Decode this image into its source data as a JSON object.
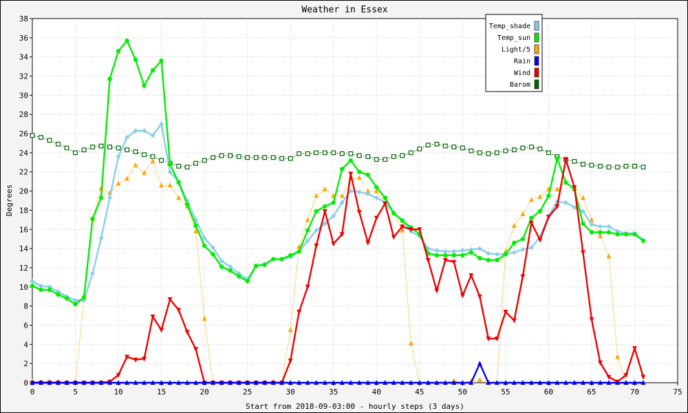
{
  "chart_data": {
    "type": "line",
    "title": "Weather in Essex",
    "xlabel": "Start from 2018-09-03:00 - hourly steps (3 days)",
    "ylabel": "Degrees",
    "xlim": [
      0,
      75
    ],
    "ylim": [
      0,
      38
    ],
    "x_ticks": [
      0,
      5,
      10,
      15,
      20,
      25,
      30,
      35,
      40,
      45,
      50,
      55,
      60,
      65,
      70,
      75
    ],
    "y_ticks": [
      0,
      2,
      4,
      6,
      8,
      10,
      12,
      14,
      16,
      18,
      20,
      22,
      24,
      26,
      28,
      30,
      32,
      34,
      36,
      38
    ],
    "grid": true,
    "legend_position": "top-right",
    "series": [
      {
        "name": "Temp_shade",
        "color": "#87ceeb",
        "marker": "diamond",
        "style": "solid",
        "values": [
          10.6,
          10.1,
          10.0,
          9.5,
          9.0,
          8.6,
          8.6,
          11.4,
          15.1,
          19.3,
          23.6,
          25.6,
          26.3,
          26.3,
          25.8,
          27.0,
          22.0,
          21.0,
          19.0,
          17.0,
          15.1,
          14.1,
          12.7,
          12.1,
          11.4,
          10.8,
          12.2,
          12.4,
          12.9,
          12.9,
          13.1,
          13.7,
          14.8,
          15.9,
          16.6,
          17.4,
          18.8,
          20.0,
          19.9,
          19.7,
          19.3,
          18.8,
          17.7,
          17.0,
          15.8,
          15.3,
          14.0,
          13.8,
          13.7,
          13.7,
          13.8,
          13.9,
          14.0,
          13.5,
          13.4,
          13.4,
          13.6,
          13.9,
          14.1,
          15.2,
          17.4,
          18.9,
          18.8,
          18.3,
          17.9,
          16.5,
          16.3,
          16.3,
          15.8,
          15.6,
          15.6,
          14.9
        ]
      },
      {
        "name": "Temp_sun",
        "color": "#00ee00",
        "marker": "circle",
        "style": "solid",
        "values": [
          10.1,
          9.7,
          9.7,
          9.2,
          8.8,
          8.2,
          8.9,
          17.1,
          19.3,
          31.7,
          34.6,
          35.7,
          33.7,
          31.0,
          32.6,
          33.6,
          22.8,
          20.9,
          18.6,
          16.4,
          14.3,
          13.4,
          12.1,
          11.7,
          11.1,
          10.6,
          12.2,
          12.3,
          12.9,
          12.9,
          13.3,
          13.7,
          15.9,
          17.9,
          18.4,
          18.8,
          22.3,
          23.2,
          22.0,
          21.7,
          20.4,
          19.3,
          17.7,
          16.9,
          16.2,
          15.5,
          13.5,
          13.3,
          13.3,
          13.3,
          13.3,
          13.6,
          13.0,
          12.8,
          12.8,
          13.4,
          14.6,
          15.0,
          17.2,
          17.9,
          19.5,
          23.4,
          20.9,
          20.2,
          16.6,
          15.7,
          15.7,
          15.7,
          15.5,
          15.5,
          15.5,
          14.8
        ]
      },
      {
        "name": "Light/5",
        "color": "#ffa500",
        "marker": "triangle-up",
        "style": "dotted",
        "values": [
          0.1,
          0.1,
          0.1,
          0.1,
          0.0,
          0.0,
          8.7,
          17.1,
          20.3,
          19.8,
          20.8,
          21.3,
          22.7,
          21.9,
          23.1,
          20.6,
          20.6,
          19.3,
          18.4,
          15.8,
          6.7,
          0.0,
          0.0,
          0.0,
          0.0,
          0.0,
          0.0,
          0.0,
          0.1,
          0.0,
          5.5,
          14.2,
          17.0,
          19.5,
          20.2,
          19.5,
          19.5,
          21.3,
          21.4,
          20.0,
          20.0,
          18.7,
          17.7,
          15.9,
          4.1,
          0.0,
          0.0,
          0.0,
          0.0,
          0.2,
          0.0,
          0.2,
          0.3,
          0.0,
          0.0,
          13.7,
          16.4,
          17.6,
          19.1,
          19.4,
          20.2,
          20.2,
          20.9,
          20.2,
          19.3,
          17.0,
          15.3,
          13.2,
          2.7,
          0.0,
          0.0,
          0.0
        ]
      },
      {
        "name": "Rain",
        "color": "#0000ee",
        "marker": "triangle-up",
        "style": "solid",
        "values": [
          0,
          0,
          0,
          0,
          0,
          0,
          0,
          0,
          0,
          0,
          0,
          0,
          0,
          0,
          0,
          0,
          0,
          0,
          0,
          0,
          0,
          0,
          0,
          0,
          0,
          0,
          0,
          0,
          0,
          0,
          0,
          0,
          0,
          0,
          0,
          0,
          0,
          0,
          0,
          0,
          0,
          0,
          0,
          0,
          0,
          0,
          0,
          0,
          0,
          0,
          0,
          0,
          2.0,
          0,
          0,
          0,
          0,
          0,
          0,
          0,
          0,
          0,
          0,
          0,
          0,
          0,
          0,
          0,
          0,
          0,
          0,
          0
        ]
      },
      {
        "name": "Wind",
        "color": "#ee0000",
        "marker": "triangle-down",
        "style": "solid",
        "values": [
          0,
          0,
          0,
          0,
          0,
          0,
          0,
          0,
          0,
          0.1,
          0.8,
          2.7,
          2.4,
          2.5,
          6.9,
          5.5,
          8.7,
          7.6,
          5.3,
          3.5,
          0,
          0,
          0,
          0,
          0,
          0,
          0,
          0,
          0,
          0,
          2.3,
          7.4,
          10.0,
          14.3,
          17.9,
          14.5,
          15.5,
          21.8,
          17.8,
          14.6,
          17.2,
          18.7,
          15.2,
          16.3,
          16.0,
          16.0,
          12.8,
          9.6,
          12.8,
          12.6,
          9.1,
          11.2,
          9.0,
          4.6,
          4.6,
          7.4,
          6.5,
          11.1,
          16.7,
          14.9,
          17.3,
          18.4,
          23.3,
          20.4,
          13.6,
          6.6,
          2.1,
          0.6,
          0.1,
          0.8,
          3.6,
          0.6
        ]
      },
      {
        "name": "Barom",
        "color": "#006400",
        "marker": "square-open",
        "style": "dotted",
        "values": [
          25.8,
          25.6,
          25.3,
          24.9,
          24.5,
          24.0,
          24.3,
          24.6,
          24.7,
          24.6,
          24.5,
          24.3,
          24.1,
          23.8,
          23.6,
          23.2,
          22.9,
          22.6,
          22.5,
          22.9,
          23.2,
          23.5,
          23.7,
          23.7,
          23.6,
          23.5,
          23.5,
          23.5,
          23.5,
          23.4,
          23.4,
          23.9,
          23.9,
          24.0,
          24.0,
          24.0,
          23.9,
          23.9,
          23.7,
          23.6,
          23.3,
          23.3,
          23.6,
          23.7,
          24.0,
          24.4,
          24.8,
          24.9,
          24.7,
          24.6,
          24.5,
          24.2,
          24.0,
          23.9,
          24.0,
          24.2,
          24.3,
          24.5,
          24.6,
          24.4,
          24.0,
          23.6,
          23.3,
          23.1,
          22.8,
          22.7,
          22.6,
          22.5,
          22.5,
          22.6,
          22.6,
          22.5
        ]
      }
    ]
  }
}
